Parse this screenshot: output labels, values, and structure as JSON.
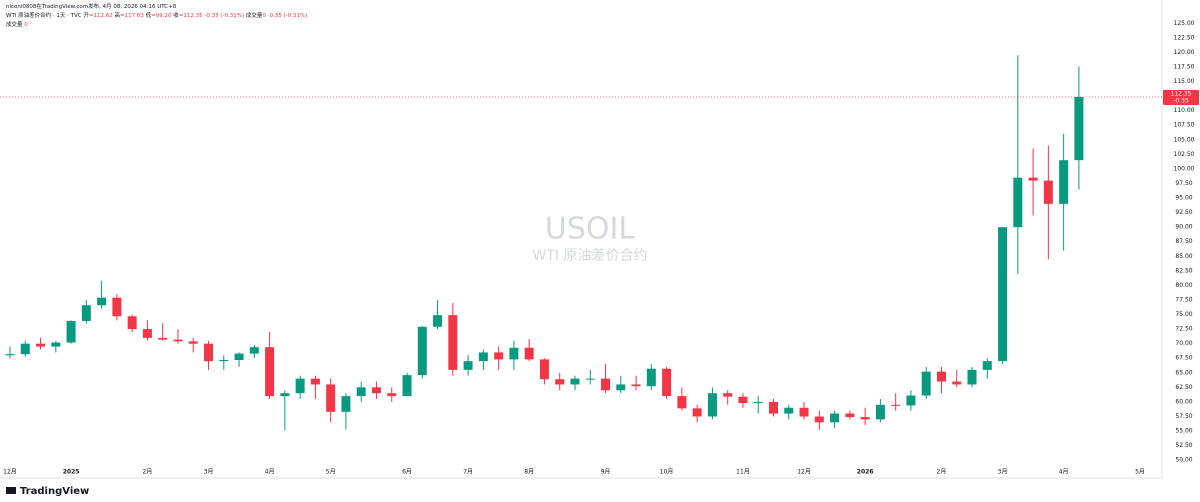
{
  "header": {
    "author_line": "niconi0808在TradingView.com发布, 4月 08, 2026 04:16 UTC+8",
    "symbol_line": "WTI 原油差价合约 · 1天 · TVC",
    "ohlc": [
      {
        "label": "开",
        "value": "=112.62"
      },
      {
        "label": "高",
        "value": "=117.63"
      },
      {
        "label": "低",
        "value": "=99.20"
      },
      {
        "label": "收",
        "value": "=112.35"
      }
    ],
    "change": "-0.35 (-0.31%)",
    "volume_label": "成交量",
    "volume_value": "0",
    "volume_change": "-0.35 (-0.31%)",
    "volume_line_label": "成交量",
    "volume_line_value": "0"
  },
  "footer": {
    "brand": "TradingView"
  },
  "chart_data": {
    "type": "candlestick",
    "title": "USOIL",
    "subtitle": "WTI 原油差价合约",
    "up_color": "#089981",
    "down_color": "#f23645",
    "change_label": "-0.35",
    "categories": [
      "12月",
      null,
      null,
      null,
      "2025",
      null,
      null,
      null,
      null,
      "2月",
      null,
      null,
      null,
      "3月",
      null,
      null,
      null,
      "4月",
      null,
      null,
      null,
      "5月",
      null,
      null,
      null,
      null,
      "6月",
      null,
      null,
      null,
      "7月",
      null,
      null,
      null,
      "8月",
      null,
      null,
      null,
      null,
      "9月",
      null,
      null,
      null,
      "10月",
      null,
      null,
      null,
      null,
      "11月",
      null,
      null,
      null,
      "12月",
      null,
      null,
      null,
      "2026",
      null,
      null,
      null,
      null,
      "2月",
      null,
      null,
      null,
      "3月",
      null,
      null,
      null,
      "4月",
      null,
      null,
      null,
      null,
      "5月",
      null
    ],
    "open": [
      68.0,
      68.2,
      70.0,
      69.5,
      70.2,
      73.9,
      76.6,
      77.9,
      74.7,
      72.5,
      71.0,
      70.7,
      70.4,
      70.0,
      67.0,
      67.2,
      68.3,
      69.4,
      61.0,
      61.5,
      64.0,
      63.0,
      58.3,
      61.0,
      62.5,
      61.5,
      61.0,
      64.6,
      72.9,
      74.9,
      65.5,
      67.0,
      68.5,
      67.3,
      69.3,
      67.3,
      63.9,
      63.0,
      64.0,
      64.0,
      62.0,
      63.0,
      62.7,
      65.7,
      61.0,
      58.9,
      57.5,
      61.5,
      60.9,
      59.8,
      60.0,
      58.0,
      59.0,
      57.5,
      56.5,
      58.0,
      57.4,
      57.0,
      59.5,
      59.4,
      61.1,
      65.2,
      63.5,
      63.0,
      65.5,
      67.0,
      90.0,
      98.5,
      98.0,
      94.0,
      101.5,
      null,
      null,
      null,
      null,
      null
    ],
    "high": [
      69.5,
      70.5,
      71.0,
      70.5,
      74.0,
      77.5,
      80.8,
      78.5,
      75.0,
      74.0,
      73.5,
      72.5,
      71.0,
      70.5,
      68.0,
      68.5,
      69.8,
      72.0,
      62.0,
      64.5,
      64.5,
      64.0,
      61.5,
      63.5,
      63.5,
      62.5,
      65.0,
      73.0,
      77.5,
      77.0,
      68.0,
      69.0,
      69.5,
      70.5,
      70.8,
      67.5,
      65.0,
      64.5,
      65.5,
      66.5,
      64.5,
      64.5,
      66.5,
      66.0,
      62.5,
      59.5,
      62.5,
      62.0,
      61.5,
      61.0,
      60.5,
      59.5,
      60.0,
      58.5,
      58.5,
      58.5,
      59.0,
      60.5,
      61.5,
      62.0,
      66.0,
      66.0,
      65.5,
      66.0,
      67.5,
      90.0,
      119.5,
      103.5,
      104.0,
      106.0,
      117.6,
      null,
      null,
      null,
      null,
      null
    ],
    "low": [
      67.5,
      67.8,
      69.0,
      68.5,
      70.0,
      73.5,
      76.0,
      74.0,
      72.0,
      70.5,
      70.5,
      70.0,
      68.5,
      65.5,
      65.5,
      66.0,
      67.5,
      60.5,
      55.1,
      60.5,
      60.5,
      56.5,
      55.3,
      60.0,
      60.5,
      60.0,
      61.0,
      64.0,
      72.5,
      64.5,
      64.5,
      65.5,
      65.5,
      65.5,
      67.0,
      63.0,
      62.0,
      62.0,
      63.0,
      61.5,
      61.5,
      62.0,
      62.0,
      60.5,
      58.5,
      56.5,
      57.0,
      59.5,
      59.0,
      58.0,
      57.5,
      57.0,
      57.0,
      55.2,
      55.5,
      57.0,
      56.0,
      56.5,
      58.5,
      58.5,
      60.5,
      61.5,
      62.5,
      62.5,
      64.0,
      66.5,
      82.0,
      92.0,
      84.5,
      86.0,
      96.5,
      null,
      null,
      null,
      null,
      null
    ],
    "close": [
      68.2,
      70.0,
      69.5,
      70.2,
      73.9,
      76.6,
      77.9,
      74.7,
      72.5,
      71.0,
      70.7,
      70.4,
      70.0,
      67.0,
      67.2,
      68.3,
      69.4,
      61.0,
      61.5,
      64.0,
      63.0,
      58.3,
      61.0,
      62.5,
      61.5,
      61.0,
      64.6,
      72.9,
      74.9,
      65.5,
      67.0,
      68.5,
      67.3,
      69.3,
      67.3,
      63.9,
      63.0,
      64.0,
      64.0,
      62.0,
      63.0,
      62.7,
      65.7,
      61.0,
      58.9,
      57.5,
      61.5,
      60.9,
      59.8,
      60.0,
      58.0,
      59.0,
      57.5,
      56.5,
      58.0,
      57.4,
      57.0,
      59.5,
      59.4,
      61.1,
      65.2,
      63.5,
      63.0,
      65.5,
      67.0,
      90.0,
      98.5,
      98.0,
      94.0,
      101.5,
      112.35,
      null,
      null,
      null,
      null,
      null
    ],
    "ylim": [
      49,
      129
    ],
    "yticks": [
      {
        "value": 50,
        "label": "50.00"
      },
      {
        "value": 52.5,
        "label": "52.50"
      },
      {
        "value": 55,
        "label": "55.00"
      },
      {
        "value": 57.5,
        "label": "57.50"
      },
      {
        "value": 60,
        "label": "60.00"
      },
      {
        "value": 62.5,
        "label": "62.50"
      },
      {
        "value": 65,
        "label": "65.00"
      },
      {
        "value": 67.5,
        "label": "67.50"
      },
      {
        "value": 70,
        "label": "70.00"
      },
      {
        "value": 72.5,
        "label": "72.50"
      },
      {
        "value": 75,
        "label": "75.00"
      },
      {
        "value": 77.5,
        "label": "77.50"
      },
      {
        "value": 80,
        "label": "80.00"
      },
      {
        "value": 82.5,
        "label": "82.50"
      },
      {
        "value": 85,
        "label": "85.00"
      },
      {
        "value": 87.5,
        "label": "87.50"
      },
      {
        "value": 90,
        "label": "90.00"
      },
      {
        "value": 92.5,
        "label": "92.50"
      },
      {
        "value": 95,
        "label": "95.00"
      },
      {
        "value": 97.5,
        "label": "97.50"
      },
      {
        "value": 100,
        "label": "100.00"
      },
      {
        "value": 102.5,
        "label": "102.50"
      },
      {
        "value": 105,
        "label": "105.00"
      },
      {
        "value": 107.5,
        "label": "107.50"
      },
      {
        "value": 110,
        "label": "110.00"
      },
      {
        "value": 112.5,
        "label": "112.50"
      },
      {
        "value": 115,
        "label": "115.00"
      },
      {
        "value": 117.5,
        "label": "117.50"
      },
      {
        "value": 120,
        "label": "120.00"
      },
      {
        "value": 122.5,
        "label": "122.50"
      },
      {
        "value": 125,
        "label": "125.00"
      }
    ],
    "grid": false
  }
}
